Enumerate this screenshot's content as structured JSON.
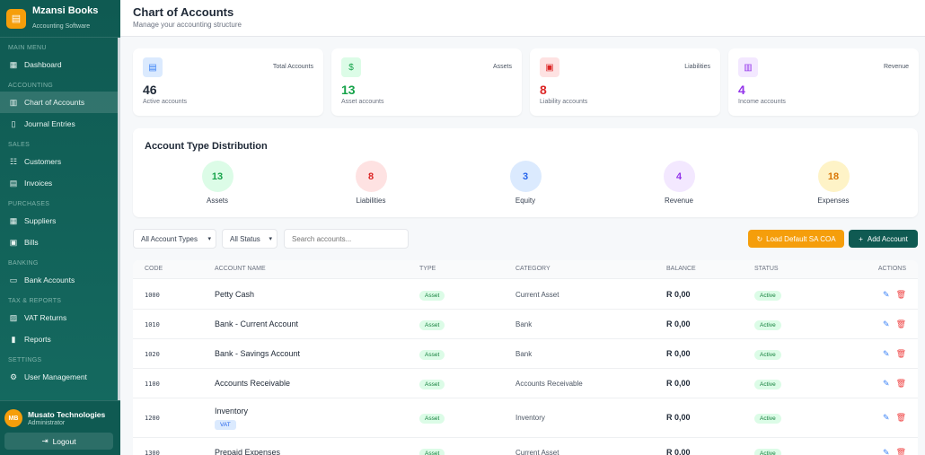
{
  "sidebar": {
    "brand": "Mzansi Books",
    "tagline": "Accounting Software",
    "sections": [
      {
        "title": "MAIN MENU",
        "items": [
          {
            "label": "Dashboard",
            "icon": "grid-icon"
          }
        ]
      },
      {
        "title": "ACCOUNTING",
        "items": [
          {
            "label": "Chart of Accounts",
            "icon": "columns-icon",
            "active": true
          },
          {
            "label": "Journal Entries",
            "icon": "book-icon"
          }
        ]
      },
      {
        "title": "SALES",
        "items": [
          {
            "label": "Customers",
            "icon": "users-icon"
          },
          {
            "label": "Invoices",
            "icon": "file-icon"
          }
        ]
      },
      {
        "title": "PURCHASES",
        "items": [
          {
            "label": "Suppliers",
            "icon": "building-icon"
          },
          {
            "label": "Bills",
            "icon": "money-icon"
          }
        ]
      },
      {
        "title": "BANKING",
        "items": [
          {
            "label": "Bank Accounts",
            "icon": "card-icon"
          }
        ]
      },
      {
        "title": "TAX & REPORTS",
        "items": [
          {
            "label": "VAT Returns",
            "icon": "receipt-icon"
          },
          {
            "label": "Reports",
            "icon": "chart-icon"
          }
        ]
      },
      {
        "title": "SETTINGS",
        "items": [
          {
            "label": "User Management",
            "icon": "user-cog-icon"
          }
        ]
      }
    ],
    "user": {
      "initials": "MB",
      "name": "Musato Technologies",
      "role": "Administrator"
    },
    "logout": "Logout"
  },
  "header": {
    "title": "Chart of Accounts",
    "subtitle": "Manage your accounting structure"
  },
  "stats": [
    {
      "label": "Total Accounts",
      "value": "46",
      "sub": "Active accounts",
      "color": "#1f2937",
      "bg": "#dbeafe",
      "fg": "#3b82f6",
      "icon": "calculator-icon"
    },
    {
      "label": "Assets",
      "value": "13",
      "sub": "Asset accounts",
      "color": "#16a34a",
      "bg": "#dcfce7",
      "fg": "#16a34a",
      "icon": "dollar-icon"
    },
    {
      "label": "Liabilities",
      "value": "8",
      "sub": "Liability accounts",
      "color": "#dc2626",
      "bg": "#fee2e2",
      "fg": "#dc2626",
      "icon": "bills-icon"
    },
    {
      "label": "Revenue",
      "value": "4",
      "sub": "Income accounts",
      "color": "#9333ea",
      "bg": "#f3e8ff",
      "fg": "#9333ea",
      "icon": "bar-chart-icon"
    }
  ],
  "distribution": {
    "title": "Account Type Distribution",
    "items": [
      {
        "label": "Assets",
        "value": "13",
        "bg": "#dcfce7",
        "fg": "#16a34a"
      },
      {
        "label": "Liabilities",
        "value": "8",
        "bg": "#fee2e2",
        "fg": "#dc2626"
      },
      {
        "label": "Equity",
        "value": "3",
        "bg": "#dbeafe",
        "fg": "#2563eb"
      },
      {
        "label": "Revenue",
        "value": "4",
        "bg": "#f3e8ff",
        "fg": "#9333ea"
      },
      {
        "label": "Expenses",
        "value": "18",
        "bg": "#fef3c7",
        "fg": "#d97706"
      }
    ]
  },
  "toolbar": {
    "type_filter": "All Account Types",
    "status_filter": "All Status",
    "search_placeholder": "Search accounts...",
    "load_default": "Load Default SA COA",
    "add_account": "Add Account"
  },
  "table": {
    "headers": [
      "CODE",
      "ACCOUNT NAME",
      "TYPE",
      "CATEGORY",
      "BALANCE",
      "STATUS",
      "ACTIONS"
    ],
    "rows": [
      {
        "code": "1000",
        "name": "Petty Cash",
        "type": "Asset",
        "category": "Current Asset",
        "balance": "R 0,00",
        "status": "Active"
      },
      {
        "code": "1010",
        "name": "Bank - Current Account",
        "type": "Asset",
        "category": "Bank",
        "balance": "R 0,00",
        "status": "Active"
      },
      {
        "code": "1020",
        "name": "Bank - Savings Account",
        "type": "Asset",
        "category": "Bank",
        "balance": "R 0,00",
        "status": "Active"
      },
      {
        "code": "1100",
        "name": "Accounts Receivable",
        "type": "Asset",
        "category": "Accounts Receivable",
        "balance": "R 0,00",
        "status": "Active"
      },
      {
        "code": "1200",
        "name": "Inventory",
        "tag": "VAT",
        "type": "Asset",
        "category": "Inventory",
        "balance": "R 0,00",
        "status": "Active"
      },
      {
        "code": "1300",
        "name": "Prepaid Expenses",
        "type": "Asset",
        "category": "Current Asset",
        "balance": "R 0,00",
        "status": "Active"
      }
    ]
  },
  "colors": {
    "sidebar": "#0f5a52",
    "accent": "#f59e0b",
    "primary_button": "#0f5a52"
  }
}
